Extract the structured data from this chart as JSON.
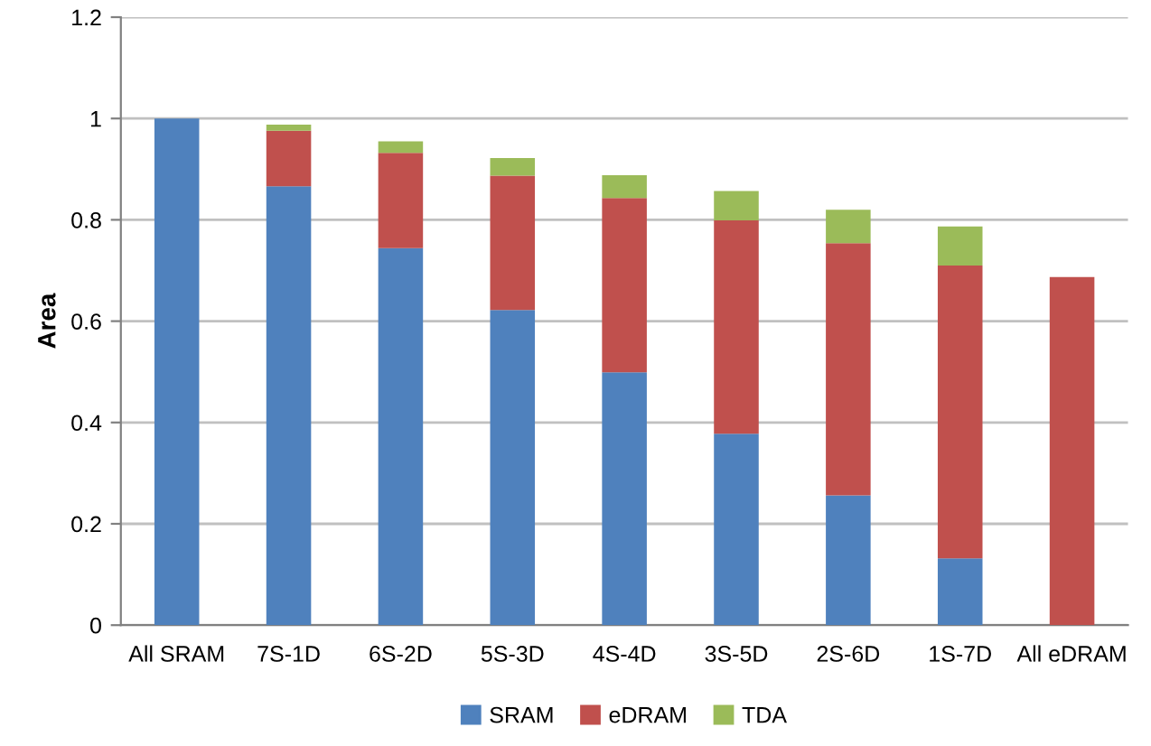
{
  "chart_data": {
    "type": "bar",
    "stacked": true,
    "ylabel": "Area",
    "categories": [
      "All SRAM",
      "7S-1D",
      "6S-2D",
      "5S-3D",
      "4S-4D",
      "3S-5D",
      "2S-6D",
      "1S-7D",
      "All eDRAM"
    ],
    "series": [
      {
        "name": "SRAM",
        "color": "#4f81bd",
        "values": [
          1.0,
          0.866,
          0.744,
          0.622,
          0.499,
          0.378,
          0.256,
          0.132,
          0
        ]
      },
      {
        "name": "eDRAM",
        "color": "#c0504d",
        "values": [
          0,
          0.11,
          0.188,
          0.265,
          0.344,
          0.421,
          0.498,
          0.578,
          0.687
        ]
      },
      {
        "name": "TDA",
        "color": "#9bbb59",
        "values": [
          0,
          0.012,
          0.023,
          0.035,
          0.045,
          0.058,
          0.066,
          0.077,
          0
        ]
      }
    ],
    "ylim": [
      0,
      1.2
    ],
    "yticks": [
      0,
      0.2,
      0.4,
      0.6,
      0.8,
      1,
      1.2
    ],
    "grid": "y",
    "legend": "bottom"
  }
}
